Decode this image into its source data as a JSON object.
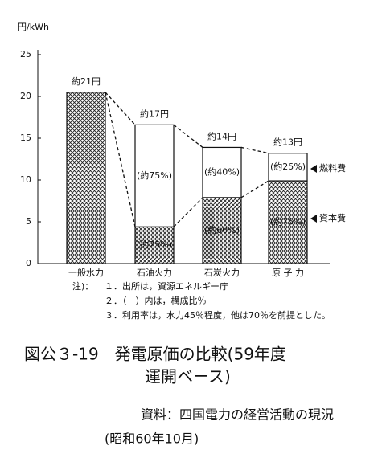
{
  "chart_data": {
    "type": "stacked-bar",
    "y_label": "円/kWh",
    "categories": [
      "一般水力",
      "石油火力",
      "石炭火力",
      "原 子 力"
    ],
    "series": [
      {
        "name": "資本費",
        "color": "#000000",
        "values": [
          20.5,
          4.4,
          7.9,
          9.9
        ],
        "segment_labels": [
          null,
          "(約25%)",
          "(約60%)",
          "(約75%)"
        ]
      },
      {
        "name": "燃料費",
        "color": "#ffffff",
        "values": [
          null,
          12.2,
          6,
          3.3
        ],
        "segment_labels": [
          null,
          "(約75%)",
          "(約40%)",
          "(約25%)"
        ]
      }
    ],
    "total_labels": [
      "約21円",
      "約17円",
      "約14円",
      "約13円"
    ],
    "ylim": [
      0,
      25
    ],
    "yticks": [
      0,
      5,
      10,
      15,
      20,
      25
    ],
    "notes": {
      "label": "注)：",
      "lines": [
        "１．出所は，資源エネルギー庁",
        "２．（　）内は，構成比％",
        "３．利用率は，水力45％程度，他は70％を前提とした。"
      ]
    },
    "caption": [
      "図公３-19　発電原価の比較(59年度",
      "運開ベース)"
    ],
    "source": [
      "資料：四国電力の経営活動の現況",
      "(昭和60年10月)"
    ]
  }
}
